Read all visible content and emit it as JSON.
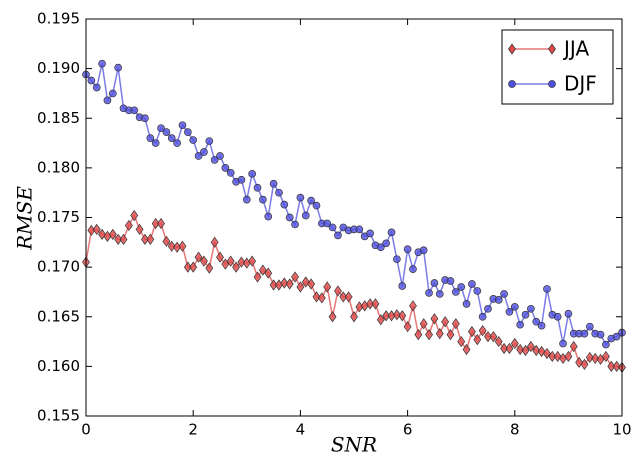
{
  "chart_data": {
    "type": "line",
    "x_label": "SNR",
    "y_label": "RMSE",
    "x": [
      0,
      0.1,
      0.2,
      0.3,
      0.4,
      0.5,
      0.6,
      0.7,
      0.8,
      0.9,
      1,
      1.1,
      1.2,
      1.3,
      1.4,
      1.5,
      1.6,
      1.7,
      1.8,
      1.9,
      2,
      2.1,
      2.2,
      2.3,
      2.4,
      2.5,
      2.6,
      2.7,
      2.8,
      2.9,
      3,
      3.1,
      3.2,
      3.3,
      3.4,
      3.5,
      3.6,
      3.7,
      3.8,
      3.9,
      4,
      4.1,
      4.2,
      4.3,
      4.4,
      4.5,
      4.6,
      4.7,
      4.8,
      4.9,
      5,
      5.1,
      5.2,
      5.3,
      5.4,
      5.5,
      5.6,
      5.7,
      5.8,
      5.9,
      6,
      6.1,
      6.2,
      6.3,
      6.4,
      6.5,
      6.6,
      6.7,
      6.8,
      6.9,
      7,
      7.1,
      7.2,
      7.3,
      7.4,
      7.5,
      7.6,
      7.7,
      7.8,
      7.9,
      8,
      8.1,
      8.2,
      8.3,
      8.4,
      8.5,
      8.6,
      8.7,
      8.8,
      8.9,
      9,
      9.1,
      9.2,
      9.3,
      9.4,
      9.5,
      9.6,
      9.7,
      9.8,
      9.9,
      10
    ],
    "series": [
      {
        "name": "JJA",
        "color": "#e04848",
        "marker": "diamond",
        "values": [
          0.1705,
          0.1737,
          0.1738,
          0.1733,
          0.1731,
          0.1733,
          0.1728,
          0.1728,
          0.1742,
          0.1752,
          0.1738,
          0.1728,
          0.1728,
          0.1744,
          0.1744,
          0.1726,
          0.1721,
          0.172,
          0.1721,
          0.17,
          0.17,
          0.171,
          0.1706,
          0.1699,
          0.1725,
          0.171,
          0.1703,
          0.1706,
          0.17,
          0.1705,
          0.1704,
          0.1706,
          0.169,
          0.1697,
          0.1694,
          0.1682,
          0.1682,
          0.1684,
          0.1683,
          0.169,
          0.168,
          0.1685,
          0.1683,
          0.167,
          0.1669,
          0.168,
          0.165,
          0.1676,
          0.167,
          0.167,
          0.165,
          0.166,
          0.1661,
          0.1663,
          0.1663,
          0.1647,
          0.1651,
          0.1651,
          0.1652,
          0.1651,
          0.164,
          0.1661,
          0.1632,
          0.1643,
          0.1632,
          0.1648,
          0.1633,
          0.1645,
          0.1632,
          0.1643,
          0.1625,
          0.1617,
          0.1635,
          0.1627,
          0.1636,
          0.163,
          0.163,
          0.1625,
          0.1618,
          0.1618,
          0.1623,
          0.1617,
          0.1616,
          0.162,
          0.1616,
          0.1615,
          0.1613,
          0.161,
          0.161,
          0.1608,
          0.161,
          0.162,
          0.1604,
          0.1602,
          0.1609,
          0.1608,
          0.1607,
          0.161,
          0.16,
          0.16,
          0.1599
        ]
      },
      {
        "name": "DJF",
        "color": "#5050e0",
        "marker": "circle",
        "values": [
          0.1894,
          0.1888,
          0.1881,
          0.1905,
          0.1868,
          0.1875,
          0.1901,
          0.186,
          0.1858,
          0.1858,
          0.1851,
          0.185,
          0.183,
          0.1825,
          0.184,
          0.1836,
          0.183,
          0.1825,
          0.1843,
          0.1836,
          0.1828,
          0.1812,
          0.1816,
          0.1827,
          0.1808,
          0.1812,
          0.18,
          0.1795,
          0.1786,
          0.1788,
          0.1768,
          0.1794,
          0.178,
          0.1768,
          0.1751,
          0.1784,
          0.1775,
          0.1763,
          0.175,
          0.1743,
          0.177,
          0.1752,
          0.1767,
          0.1762,
          0.1744,
          0.1744,
          0.174,
          0.1732,
          0.174,
          0.1737,
          0.1738,
          0.1738,
          0.1731,
          0.1734,
          0.1722,
          0.172,
          0.1724,
          0.1735,
          0.1708,
          0.1681,
          0.1718,
          0.1698,
          0.1715,
          0.1717,
          0.1674,
          0.1684,
          0.1673,
          0.1687,
          0.1686,
          0.1675,
          0.168,
          0.1663,
          0.1683,
          0.1676,
          0.165,
          0.1658,
          0.1668,
          0.1667,
          0.1673,
          0.1655,
          0.166,
          0.1642,
          0.1652,
          0.1658,
          0.1645,
          0.1641,
          0.1678,
          0.1652,
          0.165,
          0.1623,
          0.1653,
          0.1633,
          0.1633,
          0.1633,
          0.164,
          0.1633,
          0.1632,
          0.1622,
          0.1628,
          0.163,
          0.1634
        ]
      }
    ],
    "xlim": [
      0,
      10
    ],
    "xticks": [
      0,
      2,
      4,
      6,
      8,
      10
    ],
    "ylim": [
      0.155,
      0.195
    ],
    "yticks": [
      0.155,
      {
        "value": 0.16,
        "label": "0.160"
      },
      0.165,
      {
        "value": 0.17,
        "label": "0.170"
      },
      0.175,
      {
        "value": 0.18,
        "label": "0.180"
      },
      0.185,
      {
        "value": 0.19,
        "label": "0.190"
      },
      0.195
    ],
    "grid": false,
    "legend": "upper right"
  }
}
